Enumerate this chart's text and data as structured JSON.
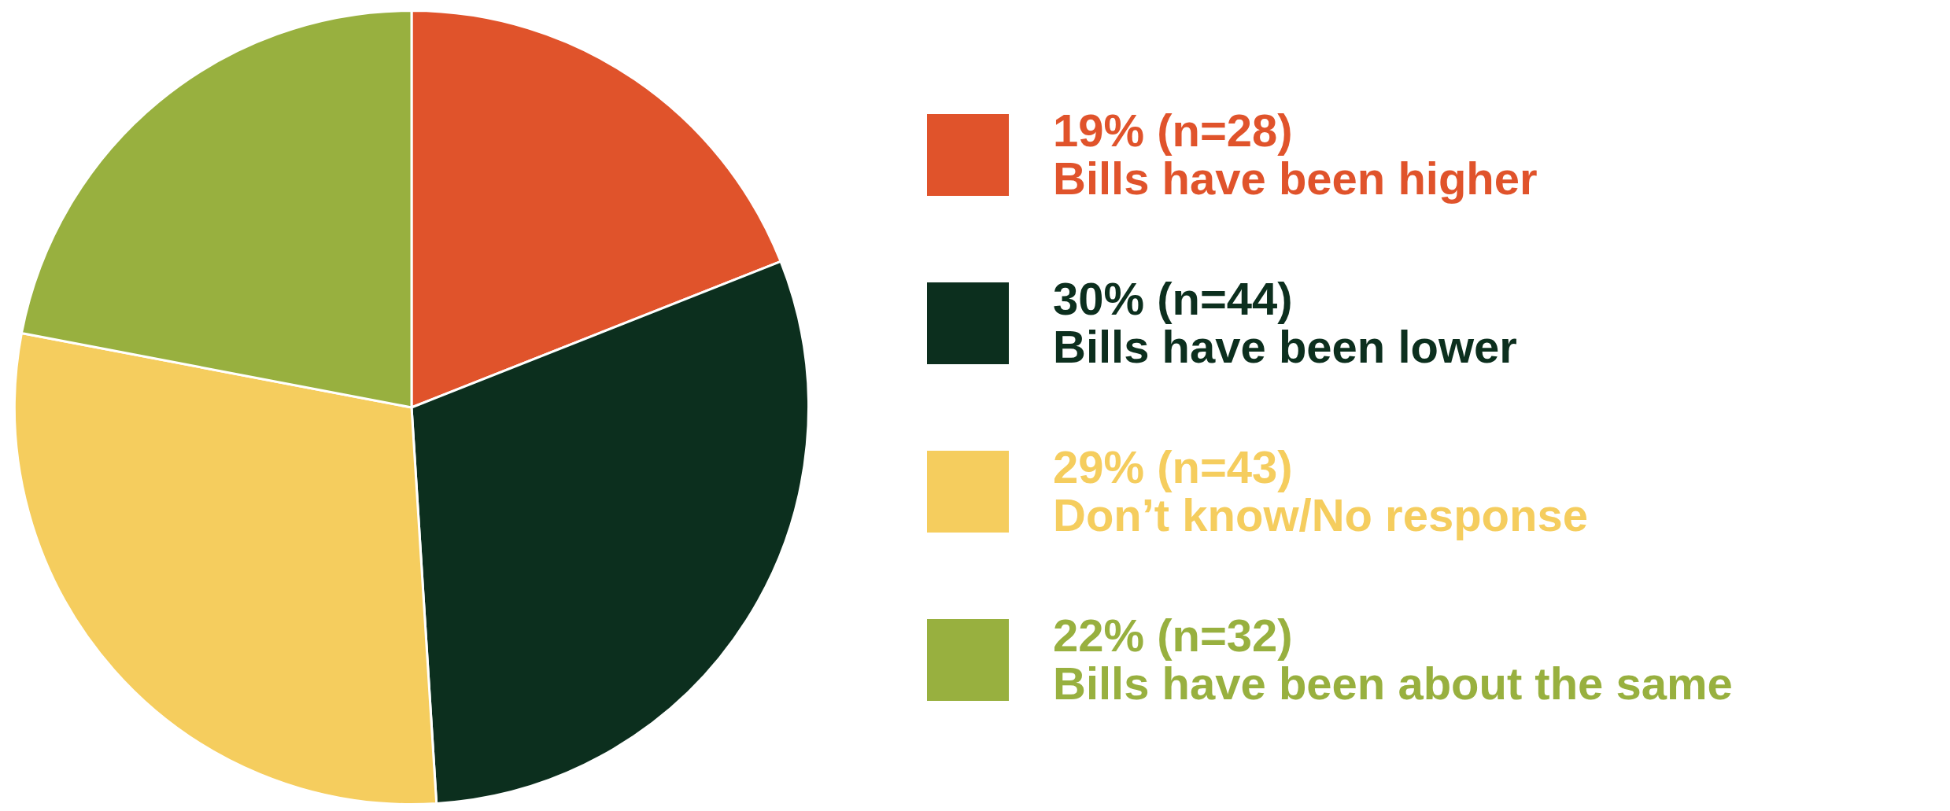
{
  "chart_data": {
    "type": "pie",
    "categories": [
      "Bills have been higher",
      "Bills have been lower",
      "Don’t know/No response",
      "Bills have been about the same"
    ],
    "values": [
      19,
      30,
      29,
      22
    ],
    "value_labels": [
      "19% (n=28)",
      "30% (n=44)",
      "29% (n=43)",
      "22% (n=32)"
    ],
    "colors": [
      "#e0532b",
      "#0c2f1e",
      "#f5cd5e",
      "#98b03f"
    ],
    "legend": "right"
  }
}
